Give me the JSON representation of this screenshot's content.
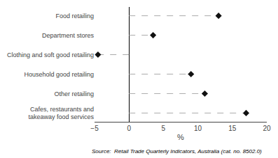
{
  "chart_data": {
    "type": "dot",
    "orientation": "horizontal",
    "categories": [
      "Food retailing",
      "Department stores",
      "Clothing and soft good retailing",
      "Household good retailing",
      "Other retailing",
      "Cafes, restaurants and\ntakeaway food services"
    ],
    "values": [
      13.0,
      3.5,
      -4.5,
      9.0,
      11.0,
      17.0
    ],
    "xlabel": "%",
    "xlim": [
      -5,
      20
    ],
    "xticks": [
      {
        "value": -5,
        "label": "−5"
      },
      0,
      5,
      10,
      15,
      20
    ],
    "color": "#111111",
    "marker": "diamond",
    "line_color": "#aaaaaa",
    "line_style": "dashed",
    "grid": false,
    "annotation": "Source:  Retail Trade Quarterly Indicators, Australia (cat. no. 8502.0)"
  }
}
